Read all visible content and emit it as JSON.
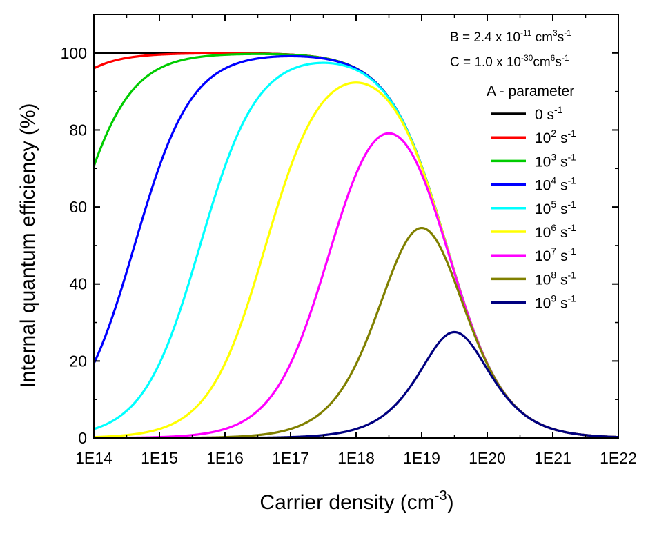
{
  "chart_data": {
    "type": "line",
    "xscale": "log",
    "xlim": [
      100000000000000.0,
      1e+22
    ],
    "ylim": [
      0,
      110
    ],
    "x_ticks": [
      100000000000000.0,
      1000000000000000.0,
      1e+16,
      1e+17,
      1e+18,
      1e+19,
      1e+20,
      1e+21,
      1e+22
    ],
    "x_tick_labels": [
      "1E14",
      "1E15",
      "1E16",
      "1E17",
      "1E18",
      "1E19",
      "1E20",
      "1E21",
      "1E22"
    ],
    "y_ticks": [
      0,
      20,
      40,
      60,
      80,
      100
    ],
    "y_tick_labels": [
      "0",
      "20",
      "40",
      "60",
      "80",
      "100"
    ],
    "xlabel": {
      "text": "Carrier density (cm",
      "sup": "-3",
      "close": ")"
    },
    "ylabel": "Internal quantum efficiency (%)",
    "grid": false,
    "legend_placement": "right",
    "annotations": {
      "b_line": {
        "prefix": "B = 2.4 x 10",
        "exp": "-11",
        "unit1": " cm",
        "unit1_exp": "3",
        "unit2": "s",
        "unit2_exp": "-1"
      },
      "c_line": {
        "prefix": "C = 1.0 x 10",
        "exp": "-30",
        "unit1": "cm",
        "unit1_exp": "6",
        "unit2": "s",
        "unit2_exp": "-1"
      },
      "legend_title": "A - parameter"
    },
    "model": {
      "B": 2.4e-11,
      "C": 1e-30
    },
    "series": [
      {
        "name": "0 s-1",
        "label_base": "0",
        "label_exp": "",
        "unit": " s",
        "unit_exp": "-1",
        "A": 0,
        "color": "#000000",
        "peak_iqe": 100
      },
      {
        "name": "10^2 s-1",
        "label_base": "10",
        "label_exp": "2",
        "unit": " s",
        "unit_exp": "-1",
        "A": 100.0,
        "color": "#ff0000",
        "peak_iqe": 100
      },
      {
        "name": "10^3 s-1",
        "label_base": "10",
        "label_exp": "3",
        "unit": " s",
        "unit_exp": "-1",
        "A": 1000.0,
        "color": "#00cc00",
        "peak_iqe": 99.9
      },
      {
        "name": "10^4 s-1",
        "label_base": "10",
        "label_exp": "4",
        "unit": " s",
        "unit_exp": "-1",
        "A": 10000.0,
        "color": "#0000ff",
        "peak_iqe": 99.2
      },
      {
        "name": "10^5 s-1",
        "label_base": "10",
        "label_exp": "5",
        "unit": " s",
        "unit_exp": "-1",
        "A": 100000.0,
        "color": "#00ffff",
        "peak_iqe": 97.6
      },
      {
        "name": "10^6 s-1",
        "label_base": "10",
        "label_exp": "6",
        "unit": " s",
        "unit_exp": "-1",
        "A": 1000000.0,
        "color": "#ffff00",
        "peak_iqe": 92.5
      },
      {
        "name": "10^7 s-1",
        "label_base": "10",
        "label_exp": "7",
        "unit": " s",
        "unit_exp": "-1",
        "A": 10000000.0,
        "color": "#ff00ff",
        "peak_iqe": 79.4
      },
      {
        "name": "10^8 s-1",
        "label_base": "10",
        "label_exp": "8",
        "unit": " s",
        "unit_exp": "-1",
        "A": 100000000.0,
        "color": "#808000",
        "peak_iqe": 54.8
      },
      {
        "name": "10^9 s-1",
        "label_base": "10",
        "label_exp": "9",
        "unit": " s",
        "unit_exp": "-1",
        "A": 1000000000.0,
        "color": "#000080",
        "peak_iqe": 27.7
      }
    ]
  }
}
